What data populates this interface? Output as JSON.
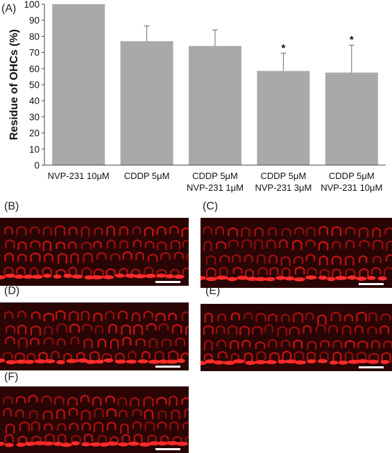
{
  "chart_data": {
    "type": "bar",
    "panel_label": "(A)",
    "ylabel": "Residue of OHCs (%)",
    "xlabel": "",
    "ylim": [
      0,
      100
    ],
    "yticks": [
      0,
      10,
      20,
      30,
      40,
      50,
      60,
      70,
      80,
      90,
      100
    ],
    "categories": [
      [
        "NVP-231 10μM"
      ],
      [
        "CDDP 5μM"
      ],
      [
        "CDDP 5μM",
        "NVP-231 1μM"
      ],
      [
        "CDDP 5μM",
        "NVP-231 3μM"
      ],
      [
        "CDDP 5μM",
        "NVP-231 10μM"
      ]
    ],
    "values": [
      100,
      77,
      74,
      58.5,
      57.5
    ],
    "errors": [
      0,
      9.5,
      10,
      11,
      17
    ],
    "significance": [
      "",
      "",
      "",
      "*",
      "*"
    ],
    "grid": false,
    "colors": {
      "bar": "#a9a9a9",
      "axis": "#444444",
      "error": "#666666"
    }
  },
  "micrographs": {
    "labels": [
      "(B)",
      "(C)",
      "(D)",
      "(E)",
      "(F)"
    ],
    "colors": {
      "background": "#2a0505",
      "cell": "#d01414",
      "pillar": "#ff2a2a",
      "scale_bar": "#ffffff"
    }
  }
}
